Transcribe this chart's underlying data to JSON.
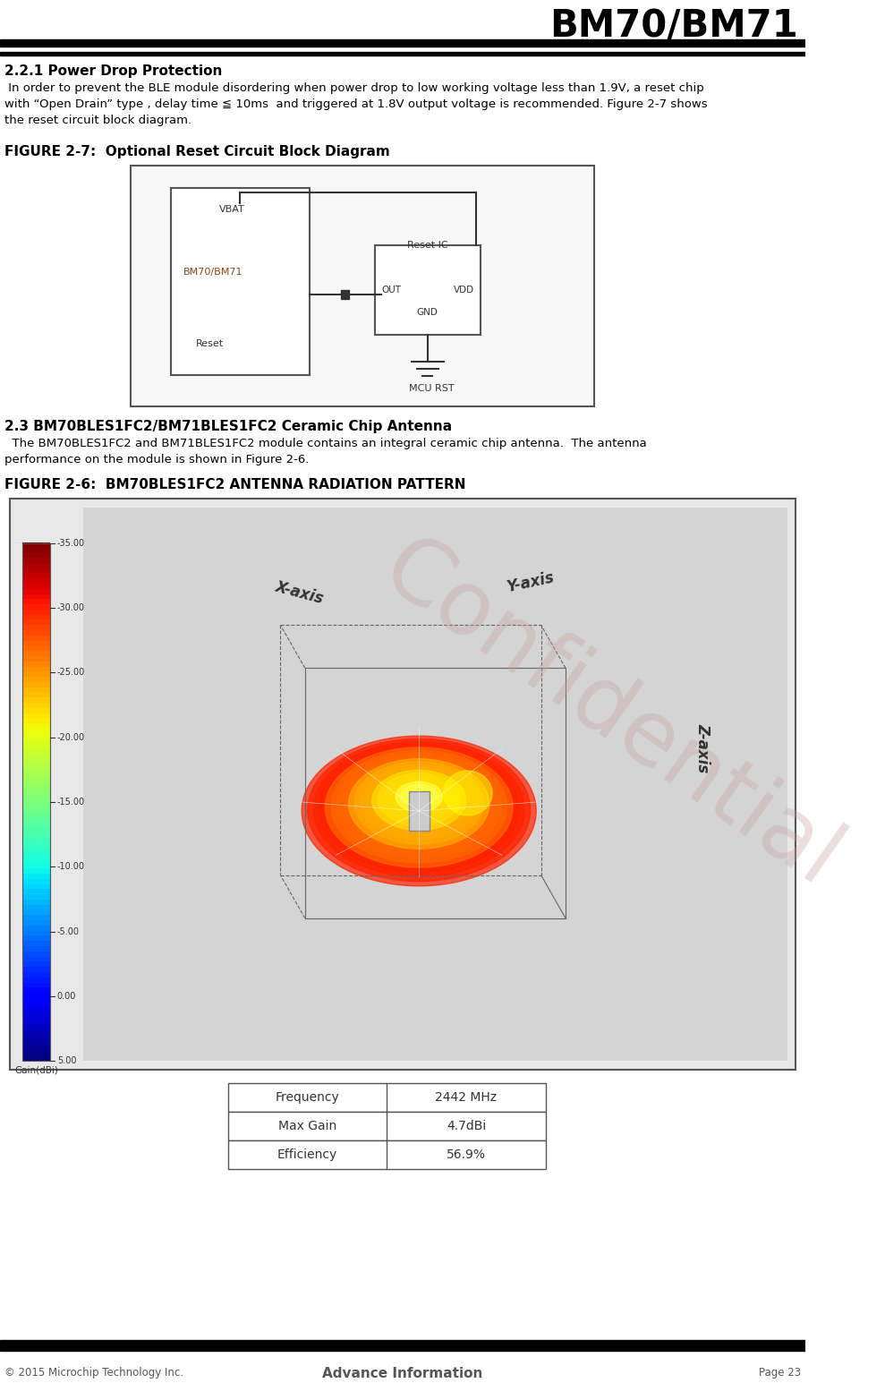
{
  "title": "BM70/BM71",
  "section_title": "2.2.1 Power Drop Protection",
  "section_body": " In order to prevent the BLE module disordering when power drop to low working voltage less than 1.9V, a reset chip\nwith “Open Drain” type , delay time ≦ 10ms  and triggered at 1.8V output voltage is recommended. Figure 2-7 shows\nthe reset circuit block diagram.",
  "fig27_title": "FIGURE 2-7:  Optional Reset Circuit Block Diagram",
  "section2_title": "2.3 BM70BLES1FC2/BM71BLES1FC2 Ceramic Chip Antenna",
  "section2_body": "  The BM70BLES1FC2 and BM71BLES1FC2 module contains an integral ceramic chip antenna.  The antenna\nperformance on the module is shown in Figure 2-6.",
  "fig26_title": "FIGURE 2-6:  BM70BLES1FC2 ANTENNA RADIATION PATTERN",
  "table_data": [
    [
      "Frequency",
      "2442 MHz"
    ],
    [
      "Max Gain",
      "4.7dBi"
    ],
    [
      "Efficiency",
      "56.9%"
    ]
  ],
  "footer_left": "© 2015 Microchip Technology Inc.",
  "footer_center": "Advance Information",
  "footer_right": "Page 23",
  "bg_color": "#ffffff",
  "text_color": "#000000",
  "confidential_color": "#c8a0a0",
  "header_bar_color": "#000000"
}
